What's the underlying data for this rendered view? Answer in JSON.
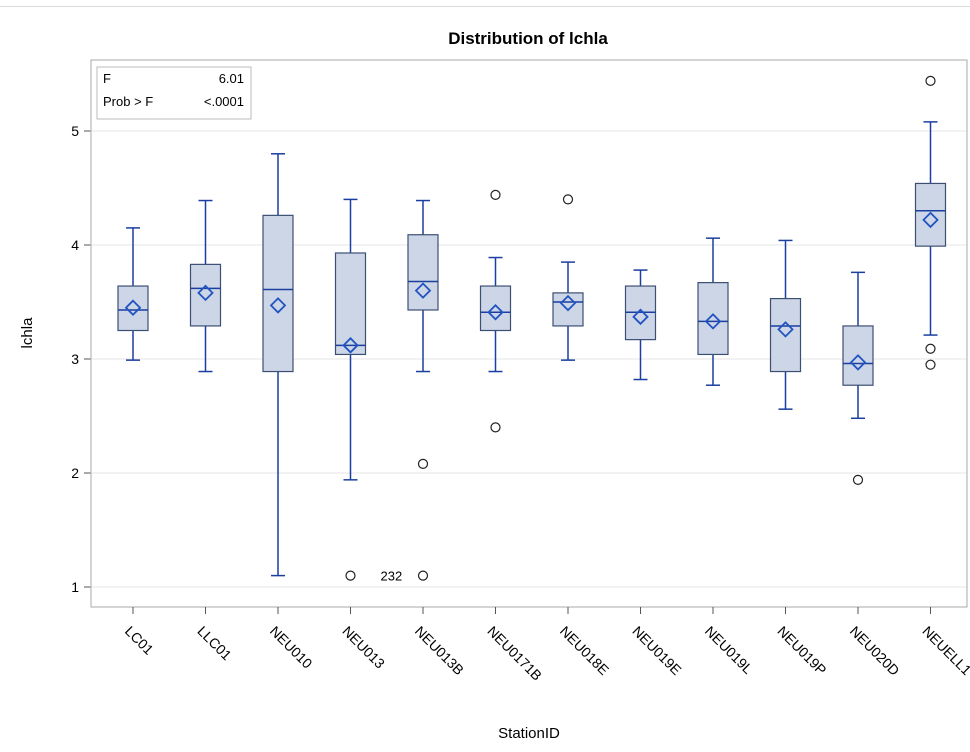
{
  "chart_data": {
    "type": "box",
    "title": "Distribution of lchla",
    "xlabel": "StationID",
    "ylabel": "lchla",
    "ylim": [
      0.85,
      5.6
    ],
    "yticks": [
      1,
      2,
      3,
      4,
      5
    ],
    "grid": "horizontal",
    "stats_inset": {
      "rows": [
        {
          "label": "F",
          "value": "6.01"
        },
        {
          "label": "Prob > F",
          "value": "<.0001"
        }
      ],
      "placement": "top-left"
    },
    "categories": [
      "LC01",
      "LLC01",
      "NEU010",
      "NEU013",
      "NEU013B",
      "NEU0171B",
      "NEU018E",
      "NEU019E",
      "NEU019L",
      "NEU019P",
      "NEU020D",
      "NEUELL1"
    ],
    "boxes": [
      {
        "station": "LC01",
        "min": 2.99,
        "q1": 3.25,
        "median": 3.43,
        "q3": 3.64,
        "max": 4.15,
        "mean": 3.45,
        "outliers": []
      },
      {
        "station": "LLC01",
        "min": 2.89,
        "q1": 3.29,
        "median": 3.62,
        "q3": 3.83,
        "max": 4.39,
        "mean": 3.58,
        "outliers": []
      },
      {
        "station": "NEU010",
        "min": 1.1,
        "q1": 2.89,
        "median": 3.61,
        "q3": 4.26,
        "max": 4.8,
        "mean": 3.47,
        "outliers": []
      },
      {
        "station": "NEU013",
        "min": 1.94,
        "q1": 3.04,
        "median": 3.12,
        "q3": 3.93,
        "max": 4.4,
        "mean": 3.12,
        "outliers": [
          1.1
        ]
      },
      {
        "station": "NEU013B",
        "min": 2.89,
        "q1": 3.43,
        "median": 3.68,
        "q3": 4.09,
        "max": 4.39,
        "mean": 3.6,
        "outliers": [
          2.08,
          1.1
        ]
      },
      {
        "station": "NEU0171B",
        "min": 2.89,
        "q1": 3.25,
        "median": 3.41,
        "q3": 3.64,
        "max": 3.89,
        "mean": 3.41,
        "outliers": [
          4.44,
          2.4
        ]
      },
      {
        "station": "NEU018E",
        "min": 2.99,
        "q1": 3.29,
        "median": 3.5,
        "q3": 3.58,
        "max": 3.85,
        "mean": 3.49,
        "outliers": [
          4.4
        ]
      },
      {
        "station": "NEU019E",
        "min": 2.82,
        "q1": 3.17,
        "median": 3.41,
        "q3": 3.64,
        "max": 3.78,
        "mean": 3.37,
        "outliers": []
      },
      {
        "station": "NEU019L",
        "min": 2.77,
        "q1": 3.04,
        "median": 3.33,
        "q3": 3.67,
        "max": 4.06,
        "mean": 3.33,
        "outliers": []
      },
      {
        "station": "NEU019P",
        "min": 2.56,
        "q1": 2.89,
        "median": 3.29,
        "q3": 3.53,
        "max": 4.04,
        "mean": 3.26,
        "outliers": []
      },
      {
        "station": "NEU020D",
        "min": 2.48,
        "q1": 2.77,
        "median": 2.96,
        "q3": 3.29,
        "max": 3.76,
        "mean": 2.97,
        "outliers": [
          1.94
        ]
      },
      {
        "station": "NEUELL1",
        "min": 3.21,
        "q1": 3.99,
        "median": 4.3,
        "q3": 4.54,
        "max": 5.08,
        "mean": 4.22,
        "outliers": [
          5.44,
          3.09,
          2.95
        ]
      }
    ],
    "outlier_labels": [
      {
        "station": "NEU013",
        "text": "232"
      }
    ],
    "colors": {
      "box_fill": "#cdd6e6",
      "box_stroke": "#3b4f75",
      "whisker": "#1b3fa0",
      "mean_marker": "#2253c2",
      "grid": "#e4e4e4",
      "frame": "#aaaaaa"
    }
  }
}
